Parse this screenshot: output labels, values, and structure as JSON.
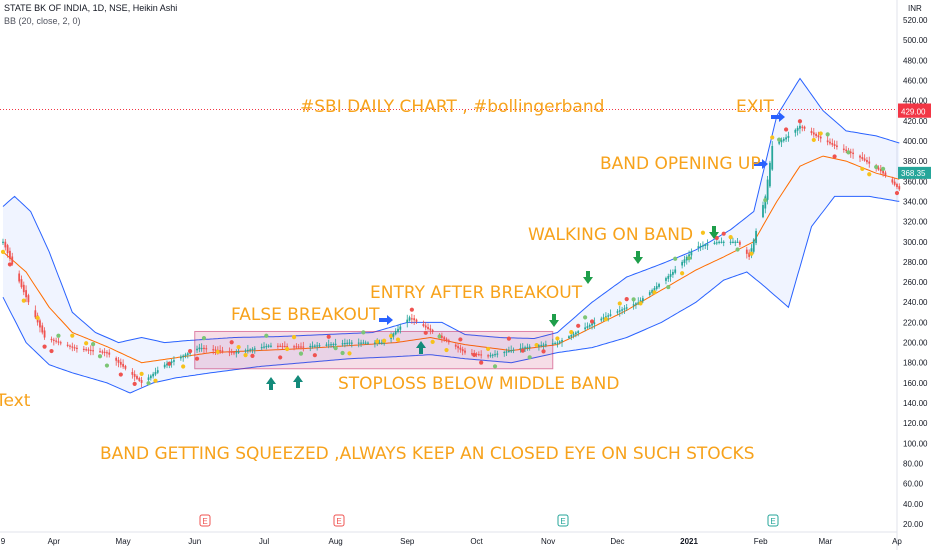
{
  "header": {
    "symbol_line": "STATE BK OF INDIA, 1D, NSE, Heikin Ashi",
    "indicator_line": "BB (20, close, 2, 0)"
  },
  "currency": "INR",
  "colors": {
    "annotation": "#f7a21b",
    "band_line": "#2962ff",
    "band_fill": "#2962ff",
    "basis_line": "#ff6d00",
    "candle_up": "#26a69a",
    "candle_down": "#ef5350",
    "price_tag": "#26a69a",
    "red_level": "#f23645",
    "arrow_blue": "#2962ff",
    "arrow_green": "#1e9e4a",
    "arrow_teal": "#138a7a",
    "squeeze_box": "#c2185b"
  },
  "price_labels": {
    "current": "368.35",
    "red_line": "431.20",
    "red_line_2": "429.00"
  },
  "annotations": [
    {
      "id": "title",
      "text": "#SBI DAILY CHART , #bollingerband"
    },
    {
      "id": "exit",
      "text": "EXIT"
    },
    {
      "id": "band-opening",
      "text": "BAND OPENING UP"
    },
    {
      "id": "walking",
      "text": "WALKING ON BAND"
    },
    {
      "id": "entry",
      "text": "ENTRY AFTER BREAKOUT"
    },
    {
      "id": "false-breakout",
      "text": "FALSE BREAKOUT"
    },
    {
      "id": "stoploss",
      "text": "STOPLOSS BELOW MIDDLE BAND"
    },
    {
      "id": "squeeze",
      "text": "BAND GETTING SQUEEZED ,ALWAYS KEEP AN CLOSED EYE ON SUCH STOCKS"
    },
    {
      "id": "text-stub",
      "text": "Text"
    }
  ],
  "events": [
    "E",
    "E",
    "E",
    "E"
  ],
  "chart_data": {
    "type": "candlestick",
    "y_axis": {
      "min": 20,
      "max": 530,
      "step": 20,
      "ticks": [
        20,
        40,
        60,
        80,
        100,
        120,
        140,
        160,
        180,
        200,
        220,
        240,
        260,
        280,
        300,
        320,
        340,
        360,
        380,
        400,
        420,
        440,
        460,
        480,
        500,
        520
      ]
    },
    "x_axis": {
      "labels": [
        {
          "label": "9",
          "day": 0
        },
        {
          "label": "Apr",
          "day": 22
        },
        {
          "label": "May",
          "day": 52
        },
        {
          "label": "Jun",
          "day": 83
        },
        {
          "label": "Jul",
          "day": 113
        },
        {
          "label": "Aug",
          "day": 144
        },
        {
          "label": "Sep",
          "day": 175
        },
        {
          "label": "Oct",
          "day": 205
        },
        {
          "label": "Nov",
          "day": 236
        },
        {
          "label": "Dec",
          "day": 266
        },
        {
          "label": "2021",
          "day": 297
        },
        {
          "label": "Feb",
          "day": 328
        },
        {
          "label": "Mar",
          "day": 356
        },
        {
          "label": "Ap",
          "day": 387
        }
      ]
    },
    "price_key": [
      [
        0,
        300
      ],
      [
        8,
        255
      ],
      [
        18,
        205
      ],
      [
        30,
        195
      ],
      [
        45,
        190
      ],
      [
        60,
        160
      ],
      [
        70,
        178
      ],
      [
        85,
        195
      ],
      [
        100,
        190
      ],
      [
        115,
        197
      ],
      [
        130,
        196
      ],
      [
        150,
        200
      ],
      [
        165,
        200
      ],
      [
        176,
        225
      ],
      [
        185,
        212
      ],
      [
        200,
        190
      ],
      [
        210,
        187
      ],
      [
        225,
        195
      ],
      [
        240,
        200
      ],
      [
        260,
        225
      ],
      [
        275,
        240
      ],
      [
        290,
        270
      ],
      [
        300,
        295
      ],
      [
        310,
        300
      ],
      [
        318,
        300
      ],
      [
        323,
        285
      ],
      [
        330,
        345
      ],
      [
        333,
        395
      ],
      [
        340,
        405
      ],
      [
        345,
        415
      ],
      [
        352,
        405
      ],
      [
        360,
        395
      ],
      [
        370,
        385
      ],
      [
        380,
        370
      ],
      [
        388,
        352
      ]
    ],
    "bands": {
      "upper": [
        [
          0,
          335
        ],
        [
          5,
          345
        ],
        [
          12,
          330
        ],
        [
          20,
          290
        ],
        [
          30,
          230
        ],
        [
          40,
          210
        ],
        [
          50,
          200
        ],
        [
          60,
          205
        ],
        [
          70,
          200
        ],
        [
          80,
          202
        ],
        [
          100,
          205
        ],
        [
          120,
          206
        ],
        [
          140,
          208
        ],
        [
          160,
          210
        ],
        [
          175,
          220
        ],
        [
          190,
          220
        ],
        [
          200,
          208
        ],
        [
          215,
          205
        ],
        [
          230,
          204
        ],
        [
          240,
          210
        ],
        [
          255,
          240
        ],
        [
          270,
          265
        ],
        [
          285,
          278
        ],
        [
          300,
          292
        ],
        [
          315,
          312
        ],
        [
          325,
          330
        ],
        [
          335,
          425
        ],
        [
          345,
          462
        ],
        [
          355,
          430
        ],
        [
          365,
          410
        ],
        [
          378,
          405
        ],
        [
          388,
          398
        ]
      ],
      "basis": [
        [
          0,
          290
        ],
        [
          10,
          270
        ],
        [
          20,
          235
        ],
        [
          30,
          210
        ],
        [
          45,
          196
        ],
        [
          60,
          180
        ],
        [
          75,
          185
        ],
        [
          90,
          190
        ],
        [
          110,
          192
        ],
        [
          130,
          194
        ],
        [
          150,
          197
        ],
        [
          170,
          200
        ],
        [
          185,
          205
        ],
        [
          200,
          198
        ],
        [
          220,
          192
        ],
        [
          240,
          198
        ],
        [
          255,
          215
        ],
        [
          270,
          232
        ],
        [
          285,
          252
        ],
        [
          300,
          272
        ],
        [
          312,
          285
        ],
        [
          325,
          300
        ],
        [
          335,
          340
        ],
        [
          345,
          375
        ],
        [
          355,
          385
        ],
        [
          365,
          380
        ],
        [
          378,
          368
        ],
        [
          388,
          362
        ]
      ],
      "lower": [
        [
          0,
          245
        ],
        [
          10,
          200
        ],
        [
          20,
          178
        ],
        [
          30,
          170
        ],
        [
          45,
          160
        ],
        [
          55,
          150
        ],
        [
          65,
          160
        ],
        [
          75,
          165
        ],
        [
          90,
          170
        ],
        [
          110,
          176
        ],
        [
          130,
          180
        ],
        [
          150,
          184
        ],
        [
          170,
          186
        ],
        [
          185,
          188
        ],
        [
          200,
          184
        ],
        [
          220,
          180
        ],
        [
          240,
          190
        ],
        [
          255,
          195
        ],
        [
          270,
          205
        ],
        [
          285,
          220
        ],
        [
          300,
          240
        ],
        [
          312,
          262
        ],
        [
          322,
          270
        ],
        [
          330,
          255
        ],
        [
          340,
          235
        ],
        [
          350,
          315
        ],
        [
          360,
          345
        ],
        [
          375,
          345
        ],
        [
          388,
          340
        ]
      ]
    },
    "squeeze_box": {
      "day_start": 83,
      "day_end": 238,
      "price_low": 174,
      "price_high": 211
    },
    "red_level_price": 431.2,
    "current_price": 368.35
  }
}
